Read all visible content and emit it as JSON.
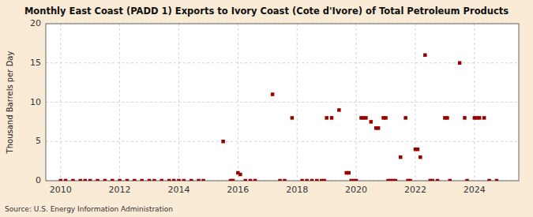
{
  "chart_data": {
    "type": "scatter",
    "title": "Monthly East Coast (PADD 1) Exports to Ivory Coast (Cote d'Ivore) of Total Petroleum Products",
    "ylabel": "Thousand Barrels per Day",
    "source": "Source: U.S. Energy Information Administration",
    "color": "#990000",
    "marker": "square",
    "grid": true,
    "xlim": [
      2009.5,
      2025.5
    ],
    "xticks": [
      2010,
      2012,
      2014,
      2016,
      2018,
      2020,
      2022,
      2024
    ],
    "ylim": [
      0,
      20
    ],
    "yticks": [
      0,
      5,
      10,
      15,
      20
    ],
    "x": [
      2010.0,
      2010.17,
      2010.42,
      2010.67,
      2010.83,
      2011.0,
      2011.25,
      2011.5,
      2011.75,
      2012.0,
      2012.25,
      2012.5,
      2012.75,
      2013.0,
      2013.17,
      2013.42,
      2013.67,
      2013.83,
      2014.0,
      2014.17,
      2014.42,
      2014.67,
      2014.83,
      2015.5,
      2015.75,
      2015.83,
      2016.0,
      2016.08,
      2016.25,
      2016.42,
      2016.58,
      2017.17,
      2017.42,
      2017.58,
      2017.83,
      2018.17,
      2018.33,
      2018.5,
      2018.67,
      2018.83,
      2018.92,
      2019.0,
      2019.17,
      2019.42,
      2019.67,
      2019.75,
      2019.83,
      2019.92,
      2020.0,
      2020.17,
      2020.25,
      2020.33,
      2020.5,
      2020.67,
      2020.75,
      2020.92,
      2021.0,
      2021.08,
      2021.17,
      2021.25,
      2021.33,
      2021.5,
      2021.67,
      2021.75,
      2021.83,
      2022.0,
      2022.08,
      2022.17,
      2022.33,
      2022.5,
      2022.58,
      2022.75,
      2023.0,
      2023.08,
      2023.17,
      2023.5,
      2023.67,
      2023.75,
      2024.0,
      2024.08,
      2024.17,
      2024.33,
      2024.5,
      2024.75
    ],
    "values": [
      0,
      0,
      0,
      0,
      0,
      0,
      0,
      0,
      0,
      0,
      0,
      0,
      0,
      0,
      0,
      0,
      0,
      0,
      0,
      0,
      0,
      0,
      0,
      5.0,
      0,
      0,
      1.0,
      0.8,
      0,
      0,
      0,
      11.0,
      0,
      0,
      8.0,
      0,
      0,
      0,
      0,
      0,
      0,
      8.0,
      8.0,
      9.0,
      1.0,
      1.0,
      0,
      0,
      0,
      8.0,
      8.0,
      8.0,
      7.5,
      6.7,
      6.7,
      8.0,
      8.0,
      0,
      0,
      0,
      0,
      3.0,
      8.0,
      0,
      0,
      4.0,
      4.0,
      3.0,
      16.0,
      0,
      0,
      0,
      8.0,
      8.0,
      0,
      15.0,
      8.0,
      0,
      8.0,
      8.0,
      8.0,
      8.0,
      0,
      0
    ]
  }
}
